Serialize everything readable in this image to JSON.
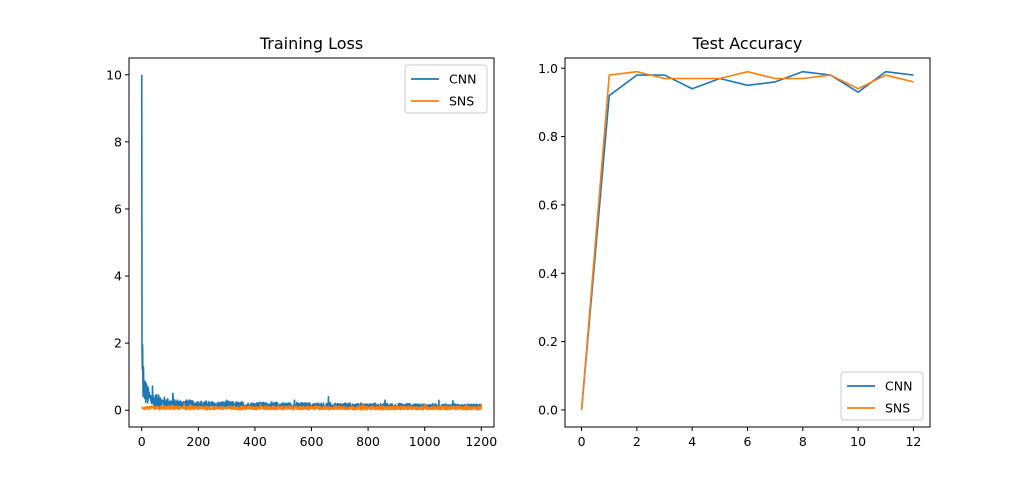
{
  "colors": {
    "cnn": "#1f77b4",
    "sns": "#ff7f0e"
  },
  "chart_data": [
    {
      "type": "line",
      "title": "Training Loss",
      "xlabel": "",
      "ylabel": "",
      "xlim": [
        -45,
        1245
      ],
      "ylim": [
        -0.5,
        10.5
      ],
      "xticks": [
        0,
        200,
        400,
        600,
        800,
        1000,
        1200
      ],
      "yticks": [
        0,
        2,
        4,
        6,
        8,
        10
      ],
      "grid": false,
      "legend": "top-right",
      "series": [
        {
          "name": "CNN",
          "color": "#1f77b4",
          "profile": [
            [
              0,
              10.0
            ],
            [
              1,
              1.9
            ],
            [
              2,
              1.2
            ],
            [
              4,
              0.9
            ],
            [
              8,
              0.75
            ],
            [
              15,
              0.6
            ],
            [
              25,
              0.45
            ],
            [
              40,
              0.35
            ],
            [
              70,
              0.28
            ],
            [
              120,
              0.22
            ],
            [
              250,
              0.18
            ],
            [
              600,
              0.15
            ],
            [
              1200,
              0.12
            ]
          ],
          "spikes": [
            [
              3,
              1.95
            ],
            [
              6,
              1.3
            ],
            [
              12,
              0.85
            ],
            [
              20,
              0.7
            ],
            [
              38,
              0.72
            ],
            [
              60,
              0.45
            ],
            [
              110,
              0.5
            ],
            [
              160,
              0.3
            ],
            [
              300,
              0.3
            ],
            [
              540,
              0.3
            ],
            [
              660,
              0.4
            ],
            [
              860,
              0.3
            ],
            [
              1050,
              0.3
            ],
            [
              1100,
              0.28
            ]
          ],
          "n_points": 1200,
          "noise": 0.1
        },
        {
          "name": "SNS",
          "color": "#ff7f0e",
          "profile": [
            [
              0,
              0.08
            ],
            [
              1200,
              0.08
            ]
          ],
          "spikes": [
            [
              150,
              0.2
            ],
            [
              420,
              0.18
            ],
            [
              780,
              0.2
            ],
            [
              1000,
              0.18
            ],
            [
              1200,
              0.2
            ]
          ],
          "n_points": 1200,
          "noise": 0.1
        }
      ]
    },
    {
      "type": "line",
      "title": "Test Accuracy",
      "xlabel": "",
      "ylabel": "",
      "xlim": [
        -0.6,
        12.6
      ],
      "ylim": [
        -0.05,
        1.03
      ],
      "xticks": [
        0,
        2,
        4,
        6,
        8,
        10,
        12
      ],
      "yticks": [
        0.0,
        0.2,
        0.4,
        0.6,
        0.8,
        1.0
      ],
      "ytick_labels": [
        "0.0",
        "0.2",
        "0.4",
        "0.6",
        "0.8",
        "1.0"
      ],
      "grid": false,
      "legend": "bottom-right",
      "x": [
        0,
        1,
        2,
        3,
        4,
        5,
        6,
        7,
        8,
        9,
        10,
        11,
        12
      ],
      "series": [
        {
          "name": "CNN",
          "color": "#1f77b4",
          "values": [
            0.0,
            0.92,
            0.98,
            0.98,
            0.94,
            0.97,
            0.95,
            0.96,
            0.99,
            0.98,
            0.93,
            0.99,
            0.98
          ]
        },
        {
          "name": "SNS",
          "color": "#ff7f0e",
          "values": [
            0.0,
            0.98,
            0.99,
            0.97,
            0.97,
            0.97,
            0.99,
            0.97,
            0.97,
            0.98,
            0.94,
            0.98,
            0.96
          ]
        }
      ]
    }
  ]
}
